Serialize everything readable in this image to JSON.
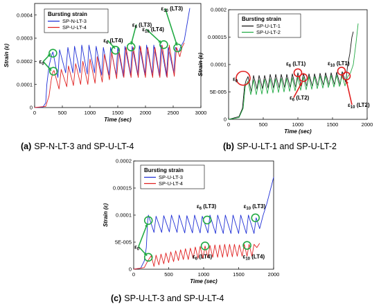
{
  "chart_data": [
    {
      "id": "a",
      "type": "line",
      "caption_letter": "(a)",
      "caption_text": "SP-N-LT-3 and SP-U-LT-4",
      "xlabel": "Time (sec)",
      "ylabel": "Strain (ε)",
      "xlim": [
        0,
        3000
      ],
      "ylim": [
        0,
        0.00045
      ],
      "xticks": [
        0,
        500,
        1000,
        1500,
        2000,
        2500,
        3000
      ],
      "xtick_labels": [
        "0",
        "500",
        "1000",
        "1500",
        "2000",
        "2500",
        "3000"
      ],
      "yticks": [
        0,
        0.0001,
        0.0002,
        0.0003,
        0.0004
      ],
      "ytick_labels": [
        "0",
        "0.0001",
        "0.0002",
        "0.0003",
        "0.0004"
      ],
      "legend": {
        "title": "Bursting strain",
        "position": "top-left"
      },
      "series": [
        {
          "name": "SP-N-LT-3",
          "color": "#1f2fd6",
          "x": [
            0,
            150,
            200,
            220,
            260,
            300,
            320,
            330,
            420,
            450,
            560,
            600,
            690,
            720,
            820,
            850,
            950,
            980,
            1080,
            1110,
            1210,
            1240,
            1340,
            1370,
            1470,
            1500,
            1600,
            1630,
            1730,
            1760,
            1860,
            1890,
            1990,
            2020,
            2120,
            2150,
            2250,
            2280,
            2380,
            2410,
            2510,
            2540,
            2600,
            2640,
            2700,
            2750,
            2800
          ],
          "y": [
            0,
            2e-06,
            2e-05,
            0.0001,
            0.00018,
            0.00022,
            0.000235,
            0.00024,
            0.00013,
            0.00025,
            0.00015,
            0.00026,
            0.00015,
            0.000265,
            0.00015,
            0.00027,
            0.000145,
            0.00027,
            0.00015,
            0.000265,
            0.00014,
            0.00026,
            0.00014,
            0.00026,
            0.00014,
            0.00026,
            0.000135,
            0.000265,
            0.00014,
            0.000265,
            0.00014,
            0.000268,
            0.00014,
            0.00027,
            0.00014,
            0.00027,
            0.000138,
            0.00027,
            0.000135,
            0.00026,
            0.00015,
            0.00026,
            0.00024,
            0.000265,
            0.00029,
            0.00036,
            0.00043
          ]
        },
        {
          "name": "SP-U-LT-4",
          "color": "#e02020",
          "x": [
            0,
            200,
            260,
            300,
            330,
            350,
            440,
            480,
            580,
            610,
            700,
            740,
            830,
            870,
            960,
            1000,
            1090,
            1130,
            1220,
            1260,
            1350,
            1390,
            1480,
            1520,
            1610,
            1650,
            1740,
            1780,
            1870,
            1910,
            2000,
            2040,
            2130,
            2170,
            2260,
            2300,
            2390,
            2430,
            2520,
            2560,
            2620,
            2660,
            2700
          ],
          "y": [
            0,
            5e-06,
            5e-05,
            0.00012,
            0.000155,
            0.00016,
            8e-05,
            0.000165,
            9e-05,
            0.00018,
            9.5e-05,
            0.00019,
            0.0001,
            0.0002,
            0.0001,
            0.00021,
            0.000105,
            0.00022,
            0.00011,
            0.00023,
            0.00012,
            0.00024,
            0.000125,
            0.00025,
            0.00013,
            0.00026,
            0.00013,
            0.00026,
            0.00013,
            0.000265,
            0.00013,
            0.00026,
            0.00013,
            0.00026,
            0.00013,
            0.00027,
            0.00013,
            0.00027,
            0.000135,
            0.00026,
            0.00022,
            0.00026,
            0.00028
          ]
        }
      ],
      "annotations": [
        {
          "type": "circle",
          "x": 330,
          "y": 0.000235,
          "color": "#22aa44"
        },
        {
          "type": "circle",
          "x": 340,
          "y": 0.000157,
          "color": "#22aa44"
        },
        {
          "type": "circle",
          "x": 1460,
          "y": 0.000248,
          "color": "#22aa44"
        },
        {
          "type": "circle",
          "x": 1740,
          "y": 0.000262,
          "color": "#22aa44"
        },
        {
          "type": "circle",
          "x": 2330,
          "y": 0.000272,
          "color": "#22aa44"
        },
        {
          "type": "circle",
          "x": 2580,
          "y": 0.000258,
          "color": "#22aa44"
        },
        {
          "type": "label",
          "base": "ε",
          "sub": "0",
          "suffix": "",
          "x": 80,
          "y": 0.00019,
          "arrows_to": [
            [
              290,
              0.000233
            ],
            [
              300,
              0.00016
            ]
          ],
          "color": "#22aa44"
        },
        {
          "type": "label",
          "base": "ε",
          "sub": "6",
          "suffix": " (LT4)",
          "x": 1240,
          "y": 0.000282,
          "arrows_to": [
            [
              1450,
              0.000255
            ]
          ],
          "color": "#22aa44"
        },
        {
          "type": "label",
          "base": "ε",
          "sub": "6",
          "suffix": " (LT3)",
          "x": 1760,
          "y": 0.00035,
          "arrows_to": [
            [
              1740,
              0.000272
            ]
          ],
          "color": "#22aa44"
        },
        {
          "type": "label",
          "base": "ε",
          "sub": "10",
          "suffix": " (LT4)",
          "x": 1940,
          "y": 0.00033,
          "arrows_to": [
            [
              2290,
              0.000278
            ]
          ],
          "color": "#22aa44"
        },
        {
          "type": "label",
          "base": "ε",
          "sub": "10",
          "suffix": " (LT3)",
          "x": 2280,
          "y": 0.00042,
          "arrows_to": [
            [
              2570,
              0.000268
            ]
          ],
          "color": "#22aa44"
        }
      ]
    },
    {
      "id": "b",
      "type": "line",
      "caption_letter": "(b)",
      "caption_text": "SP-U-LT-1 and SP-U-LT-2",
      "xlabel": "Time (sec)",
      "ylabel": "Strain (ε)",
      "xlim": [
        0,
        2000
      ],
      "ylim": [
        0,
        0.0002
      ],
      "xticks": [
        0,
        500,
        1000,
        1500,
        2000
      ],
      "xtick_labels": [
        "0",
        "500",
        "1000",
        "1500",
        "2000"
      ],
      "yticks": [
        0,
        5e-05,
        0.0001,
        0.00015,
        0.0002
      ],
      "ytick_labels": [
        "0",
        "5E-005",
        "0.0001",
        "0.00015",
        "0.0002"
      ],
      "legend": {
        "title": "Bursting strain",
        "position": "top-left"
      },
      "series": [
        {
          "name": "SP-U-LT-1",
          "color": "#111111",
          "x": [
            0,
            150,
            200,
            230,
            250,
            280,
            330,
            360,
            410,
            440,
            490,
            520,
            570,
            600,
            650,
            680,
            730,
            760,
            810,
            840,
            890,
            920,
            970,
            1000,
            1050,
            1080,
            1130,
            1160,
            1210,
            1240,
            1290,
            1320,
            1370,
            1400,
            1450,
            1480,
            1530,
            1560,
            1610,
            1640,
            1690,
            1720,
            1750,
            1780,
            1800
          ],
          "y": [
            0,
            5e-06,
            2e-05,
            6e-05,
            7e-05,
            7.8e-05,
            5e-05,
            8e-05,
            5.5e-05,
            8e-05,
            5.6e-05,
            8e-05,
            5.7e-05,
            8.2e-05,
            5.7e-05,
            8.2e-05,
            5.7e-05,
            8.2e-05,
            5.8e-05,
            8.2e-05,
            5.8e-05,
            8.3e-05,
            5.8e-05,
            8.5e-05,
            6e-05,
            8.4e-05,
            6e-05,
            8.3e-05,
            6e-05,
            8.3e-05,
            6.1e-05,
            8.4e-05,
            6.2e-05,
            8.5e-05,
            6.2e-05,
            8.5e-05,
            6.3e-05,
            8.6e-05,
            6.3e-05,
            8.7e-05,
            6.8e-05,
            0.0001,
            0.00012,
            0.00015,
            0.00016
          ]
        },
        {
          "name": "SP-U-LT-2",
          "color": "#22aa44",
          "x": [
            0,
            150,
            210,
            240,
            280,
            320,
            360,
            400,
            440,
            480,
            520,
            560,
            600,
            640,
            680,
            720,
            760,
            800,
            840,
            880,
            920,
            960,
            1000,
            1040,
            1080,
            1120,
            1160,
            1200,
            1240,
            1280,
            1320,
            1360,
            1400,
            1440,
            1480,
            1520,
            1560,
            1600,
            1640,
            1680,
            1720,
            1760,
            1800,
            1840,
            1870
          ],
          "y": [
            0,
            3e-06,
            2e-05,
            6e-05,
            7e-05,
            4.5e-05,
            7.2e-05,
            4.5e-05,
            7.2e-05,
            4.6e-05,
            7.3e-05,
            4.7e-05,
            7.4e-05,
            4.8e-05,
            7.4e-05,
            4.9e-05,
            7.5e-05,
            5e-05,
            7.5e-05,
            5.1e-05,
            7.6e-05,
            5.2e-05,
            7.7e-05,
            5.3e-05,
            7.7e-05,
            5.4e-05,
            7.8e-05,
            5.5e-05,
            7.8e-05,
            5.6e-05,
            7.9e-05,
            5.7e-05,
            7.9e-05,
            5.8e-05,
            8e-05,
            5.9e-05,
            8e-05,
            6e-05,
            8e-05,
            6.1e-05,
            7.8e-05,
            8.5e-05,
            0.0001,
            0.00014,
            0.000175
          ]
        }
      ],
      "annotations": [
        {
          "type": "circle",
          "x": 210,
          "y": 7.5e-05,
          "color": "#e02020",
          "r": 10
        },
        {
          "type": "circle",
          "x": 1000,
          "y": 8.5e-05,
          "color": "#e02020"
        },
        {
          "type": "circle",
          "x": 1080,
          "y": 7.6e-05,
          "color": "#e02020"
        },
        {
          "type": "circle",
          "x": 1630,
          "y": 8.8e-05,
          "color": "#e02020"
        },
        {
          "type": "circle",
          "x": 1700,
          "y": 7.9e-05,
          "color": "#e02020"
        },
        {
          "type": "label",
          "base": "ε",
          "sub": "0",
          "suffix": "",
          "x": 60,
          "y": 7e-05,
          "arrows_to": [],
          "color": "#e02020"
        },
        {
          "type": "label",
          "base": "ε",
          "sub": "6",
          "suffix": " (LT1)",
          "x": 830,
          "y": 9.8e-05,
          "arrows_to": [],
          "color": "#e02020"
        },
        {
          "type": "label",
          "base": "ε",
          "sub": "10",
          "suffix": " (LT1)",
          "x": 1430,
          "y": 9.9e-05,
          "arrows_to": [],
          "color": "#e02020"
        },
        {
          "type": "label",
          "base": "ε",
          "sub": "6",
          "suffix": " (LT2)",
          "x": 880,
          "y": 3.6e-05,
          "arrows_to": [
            [
              1060,
              6.8e-05
            ]
          ],
          "color": "#e02020"
        },
        {
          "type": "label",
          "base": "ε",
          "sub": "10",
          "suffix": " (LT2)",
          "x": 1720,
          "y": 2.3e-05,
          "arrows_to": [
            [
              1700,
              7.1e-05
            ]
          ],
          "color": "#e02020"
        }
      ]
    },
    {
      "id": "c",
      "type": "line",
      "caption_letter": "(c)",
      "caption_text": "SP-U-LT-3 and SP-U-LT-4",
      "xlabel": "Time (sec)",
      "ylabel": "Strain (ε)",
      "xlim": [
        0,
        2000
      ],
      "ylim": [
        0,
        0.0002
      ],
      "xticks": [
        0,
        500,
        1000,
        1500,
        2000
      ],
      "xtick_labels": [
        "0",
        "500",
        "1000",
        "1500",
        "2000"
      ],
      "yticks": [
        0,
        5e-05,
        0.0001,
        0.00015,
        0.0002
      ],
      "ytick_labels": [
        "0",
        "5E-005",
        "0.0001",
        "0.00015",
        "0.0002"
      ],
      "legend": {
        "title": "Bursting strain",
        "position": "top-left"
      },
      "series": [
        {
          "name": "SP-U-LT-3",
          "color": "#1f2fd6",
          "x": [
            0,
            100,
            150,
            180,
            200,
            210,
            290,
            320,
            400,
            430,
            510,
            540,
            620,
            650,
            730,
            760,
            840,
            870,
            950,
            980,
            1060,
            1090,
            1170,
            1200,
            1280,
            1310,
            1390,
            1420,
            1500,
            1530,
            1610,
            1640,
            1720,
            1750,
            1800,
            1850,
            1900,
            1960,
            2000
          ],
          "y": [
            0,
            2e-06,
            1.5e-05,
            4e-05,
            9e-05,
            0.0001,
            6.8e-05,
            9.8e-05,
            6.8e-05,
            9.9e-05,
            6.9e-05,
            0.0001,
            6.8e-05,
            0.0001,
            6.7e-05,
            9.9e-05,
            6.7e-05,
            0.0001,
            6.7e-05,
            9.8e-05,
            6.7e-05,
            0.0001,
            6.6e-05,
            0.0001,
            6.6e-05,
            0.0001,
            6.6e-05,
            0.0001,
            6.6e-05,
            0.0001,
            6.6e-05,
            0.0001,
            6.6e-05,
            9.5e-05,
            7.5e-05,
            0.0001,
            0.00012,
            0.00015,
            0.00017
          ]
        },
        {
          "name": "SP-U-LT-4",
          "color": "#e02020",
          "x": [
            0,
            150,
            200,
            250,
            290,
            320,
            360,
            390,
            430,
            460,
            500,
            530,
            570,
            600,
            640,
            670,
            710,
            740,
            780,
            810,
            850,
            880,
            920,
            950,
            990,
            1020,
            1060,
            1090,
            1130,
            1160,
            1200,
            1230,
            1270,
            1300,
            1340,
            1370,
            1410,
            1440,
            1480,
            1510,
            1550,
            1580,
            1620,
            1650,
            1690,
            1720,
            1760,
            1800
          ],
          "y": [
            0,
            3e-06,
            1.5e-05,
            2.5e-05,
            5e-06,
            2.6e-05,
            8e-06,
            2.8e-05,
            1e-05,
            3e-05,
            1.2e-05,
            3.2e-05,
            1.4e-05,
            3.4e-05,
            1.6e-05,
            3.6e-05,
            1.8e-05,
            3.8e-05,
            1.8e-05,
            3.9e-05,
            2e-05,
            4.1e-05,
            2e-05,
            4.2e-05,
            2e-05,
            4.3e-05,
            2.1e-05,
            4.4e-05,
            2.2e-05,
            4.5e-05,
            2.2e-05,
            4.5e-05,
            2.2e-05,
            4.6e-05,
            2.3e-05,
            4.6e-05,
            2.3e-05,
            4.6e-05,
            2.4e-05,
            4.5e-05,
            2.4e-05,
            4.6e-05,
            2.4e-05,
            4.6e-05,
            2.4e-05,
            4.6e-05,
            4e-05,
            4.8e-05
          ]
        }
      ],
      "annotations": [
        {
          "type": "circle",
          "x": 210,
          "y": 9e-05,
          "color": "#22aa44"
        },
        {
          "type": "circle",
          "x": 210,
          "y": 2.2e-05,
          "color": "#22aa44"
        },
        {
          "type": "circle",
          "x": 1050,
          "y": 9.1e-05,
          "color": "#22aa44"
        },
        {
          "type": "circle",
          "x": 1020,
          "y": 4.3e-05,
          "color": "#22aa44"
        },
        {
          "type": "circle",
          "x": 1740,
          "y": 9.5e-05,
          "color": "#22aa44"
        },
        {
          "type": "circle",
          "x": 1620,
          "y": 4.4e-05,
          "color": "#22aa44"
        },
        {
          "type": "label",
          "base": "ε",
          "sub": "0",
          "suffix": "",
          "x": 10,
          "y": 3.8e-05,
          "arrows_to": [
            [
              195,
              8.4e-05
            ],
            [
              190,
              2.5e-05
            ]
          ],
          "color": "#22aa44"
        },
        {
          "type": "label",
          "base": "ε",
          "sub": "6",
          "suffix": " (LT3)",
          "x": 900,
          "y": 0.000113,
          "arrows_to": [],
          "color": "#22aa44"
        },
        {
          "type": "label",
          "base": "ε",
          "sub": "10",
          "suffix": " (LT3)",
          "x": 1570,
          "y": 0.000113,
          "arrows_to": [],
          "color": "#22aa44"
        },
        {
          "type": "label",
          "base": "ε",
          "sub": "6",
          "suffix": " (LT4)",
          "x": 840,
          "y": 2e-05,
          "arrows_to": [],
          "color": "#22aa44"
        },
        {
          "type": "label",
          "base": "ε",
          "sub": "10",
          "suffix": " (LT4)",
          "x": 1560,
          "y": 2e-05,
          "arrows_to": [],
          "color": "#22aa44"
        }
      ]
    }
  ]
}
